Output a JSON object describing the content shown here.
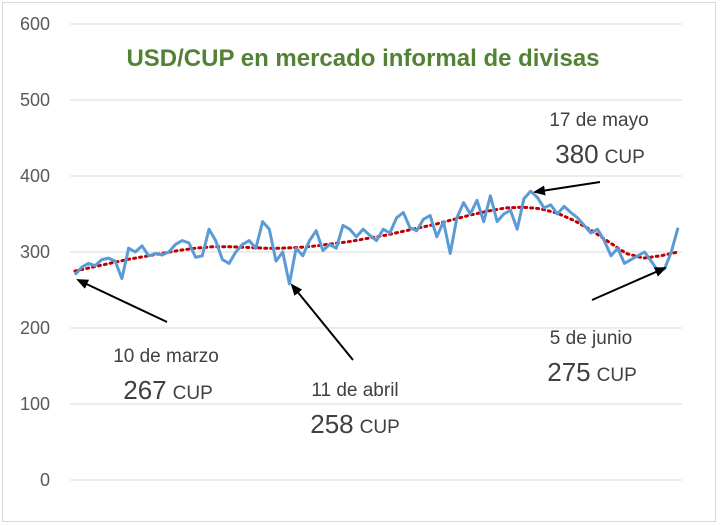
{
  "chart_data": {
    "type": "line",
    "title": "USD/CUP en mercado informal de divisas",
    "ylim": [
      0,
      600
    ],
    "yticks": [
      "0",
      "100",
      "200",
      "300",
      "400",
      "500",
      "600"
    ],
    "grid": true,
    "series": [
      {
        "color": "#5b9bd5",
        "values": [
          270,
          280,
          285,
          282,
          290,
          292,
          288,
          265,
          305,
          300,
          308,
          295,
          298,
          296,
          300,
          310,
          315,
          312,
          293,
          295,
          330,
          315,
          290,
          285,
          300,
          310,
          315,
          305,
          340,
          330,
          288,
          300,
          258,
          305,
          295,
          315,
          328,
          302,
          310,
          305,
          335,
          330,
          320,
          330,
          322,
          315,
          330,
          325,
          345,
          352,
          332,
          328,
          343,
          348,
          320,
          340,
          298,
          345,
          365,
          350,
          368,
          340,
          374,
          340,
          350,
          355,
          330,
          370,
          380,
          372,
          358,
          362,
          350,
          360,
          352,
          345,
          335,
          325,
          330,
          315,
          295,
          305,
          285,
          290,
          295,
          300,
          288,
          275,
          278,
          300,
          332
        ]
      },
      {
        "color": "#c00000",
        "style": "dotted-trend",
        "values": [
          275,
          280,
          285,
          290,
          294,
          298,
          302,
          305,
          307,
          307,
          306,
          305,
          305,
          306,
          308,
          311,
          314,
          318,
          322,
          327,
          332,
          337,
          343,
          349,
          354,
          358,
          359,
          357,
          351,
          341,
          328,
          313,
          298,
          292,
          295,
          300
        ]
      }
    ],
    "annotations": [
      {
        "date": "10 de marzo",
        "value": "267",
        "unit": "CUP"
      },
      {
        "date": "11 de abril",
        "value": "258",
        "unit": "CUP"
      },
      {
        "date": "17 de mayo",
        "value": "380",
        "unit": "CUP"
      },
      {
        "date": "5 de junio",
        "value": "275",
        "unit": "CUP"
      }
    ]
  }
}
